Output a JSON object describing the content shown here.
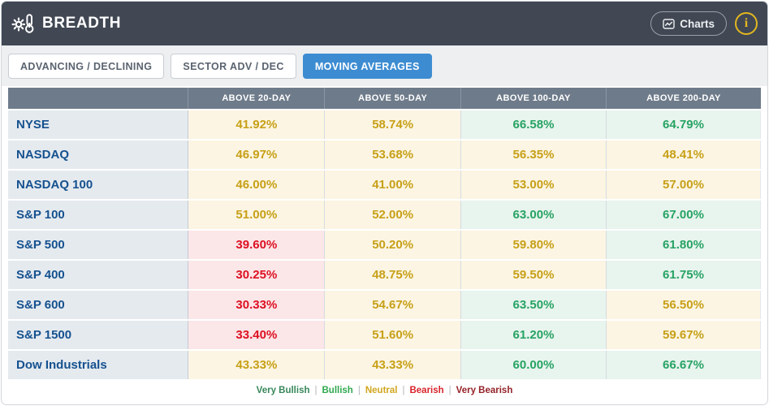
{
  "header": {
    "title": "BREADTH",
    "charts_button": "Charts",
    "info_icon": "i"
  },
  "tabs": [
    {
      "label": "ADVANCING / DECLINING",
      "active": false
    },
    {
      "label": "SECTOR ADV / DEC",
      "active": false
    },
    {
      "label": "MOVING AVERAGES",
      "active": true
    }
  ],
  "table": {
    "columns": [
      "",
      "ABOVE 20-DAY",
      "ABOVE 50-DAY",
      "ABOVE 100-DAY",
      "ABOVE 200-DAY"
    ],
    "rows": [
      {
        "label": "NYSE",
        "cells": [
          {
            "value": "41.92%",
            "status": "neutral"
          },
          {
            "value": "58.74%",
            "status": "neutral"
          },
          {
            "value": "66.58%",
            "status": "bullish"
          },
          {
            "value": "64.79%",
            "status": "bullish"
          }
        ]
      },
      {
        "label": "NASDAQ",
        "cells": [
          {
            "value": "46.97%",
            "status": "neutral"
          },
          {
            "value": "53.68%",
            "status": "neutral"
          },
          {
            "value": "56.35%",
            "status": "neutral"
          },
          {
            "value": "48.41%",
            "status": "neutral"
          }
        ]
      },
      {
        "label": "NASDAQ 100",
        "cells": [
          {
            "value": "46.00%",
            "status": "neutral"
          },
          {
            "value": "41.00%",
            "status": "neutral"
          },
          {
            "value": "53.00%",
            "status": "neutral"
          },
          {
            "value": "57.00%",
            "status": "neutral"
          }
        ]
      },
      {
        "label": "S&P 100",
        "cells": [
          {
            "value": "51.00%",
            "status": "neutral"
          },
          {
            "value": "52.00%",
            "status": "neutral"
          },
          {
            "value": "63.00%",
            "status": "bullish"
          },
          {
            "value": "67.00%",
            "status": "bullish"
          }
        ]
      },
      {
        "label": "S&P 500",
        "cells": [
          {
            "value": "39.60%",
            "status": "bearish"
          },
          {
            "value": "50.20%",
            "status": "neutral"
          },
          {
            "value": "59.80%",
            "status": "neutral"
          },
          {
            "value": "61.80%",
            "status": "bullish"
          }
        ]
      },
      {
        "label": "S&P 400",
        "cells": [
          {
            "value": "30.25%",
            "status": "bearish"
          },
          {
            "value": "48.75%",
            "status": "neutral"
          },
          {
            "value": "59.50%",
            "status": "neutral"
          },
          {
            "value": "61.75%",
            "status": "bullish"
          }
        ]
      },
      {
        "label": "S&P 600",
        "cells": [
          {
            "value": "30.33%",
            "status": "bearish"
          },
          {
            "value": "54.67%",
            "status": "neutral"
          },
          {
            "value": "63.50%",
            "status": "bullish"
          },
          {
            "value": "56.50%",
            "status": "neutral"
          }
        ]
      },
      {
        "label": "S&P 1500",
        "cells": [
          {
            "value": "33.40%",
            "status": "bearish"
          },
          {
            "value": "51.60%",
            "status": "neutral"
          },
          {
            "value": "61.20%",
            "status": "bullish"
          },
          {
            "value": "59.67%",
            "status": "neutral"
          }
        ]
      },
      {
        "label": "Dow Industrials",
        "cells": [
          {
            "value": "43.33%",
            "status": "neutral"
          },
          {
            "value": "43.33%",
            "status": "neutral"
          },
          {
            "value": "60.00%",
            "status": "bullish"
          },
          {
            "value": "66.67%",
            "status": "bullish"
          }
        ]
      }
    ]
  },
  "legend": {
    "separator": "|",
    "items": [
      {
        "label": "Very Bullish",
        "color": "#37875a"
      },
      {
        "label": "Bullish",
        "color": "#2fa84f"
      },
      {
        "label": "Neutral",
        "color": "#d2a51d"
      },
      {
        "label": "Bearish",
        "color": "#d8232b"
      },
      {
        "label": "Very Bearish",
        "color": "#942127"
      }
    ]
  },
  "colors": {
    "topbar_bg": "#414854",
    "active_tab_bg": "#3d8cd2",
    "table_header_bg": "#6e7b8a",
    "label_cell_bg": "#e5eaef",
    "label_text": "#15518f",
    "neutral_bg": "#fcf5e3",
    "neutral_text": "#c7a017",
    "bullish_bg": "#e8f4ee",
    "bullish_text": "#27a364",
    "bearish_bg": "#fbe6e8",
    "bearish_text": "#dd1021",
    "info_icon_color": "#e2b71f"
  }
}
